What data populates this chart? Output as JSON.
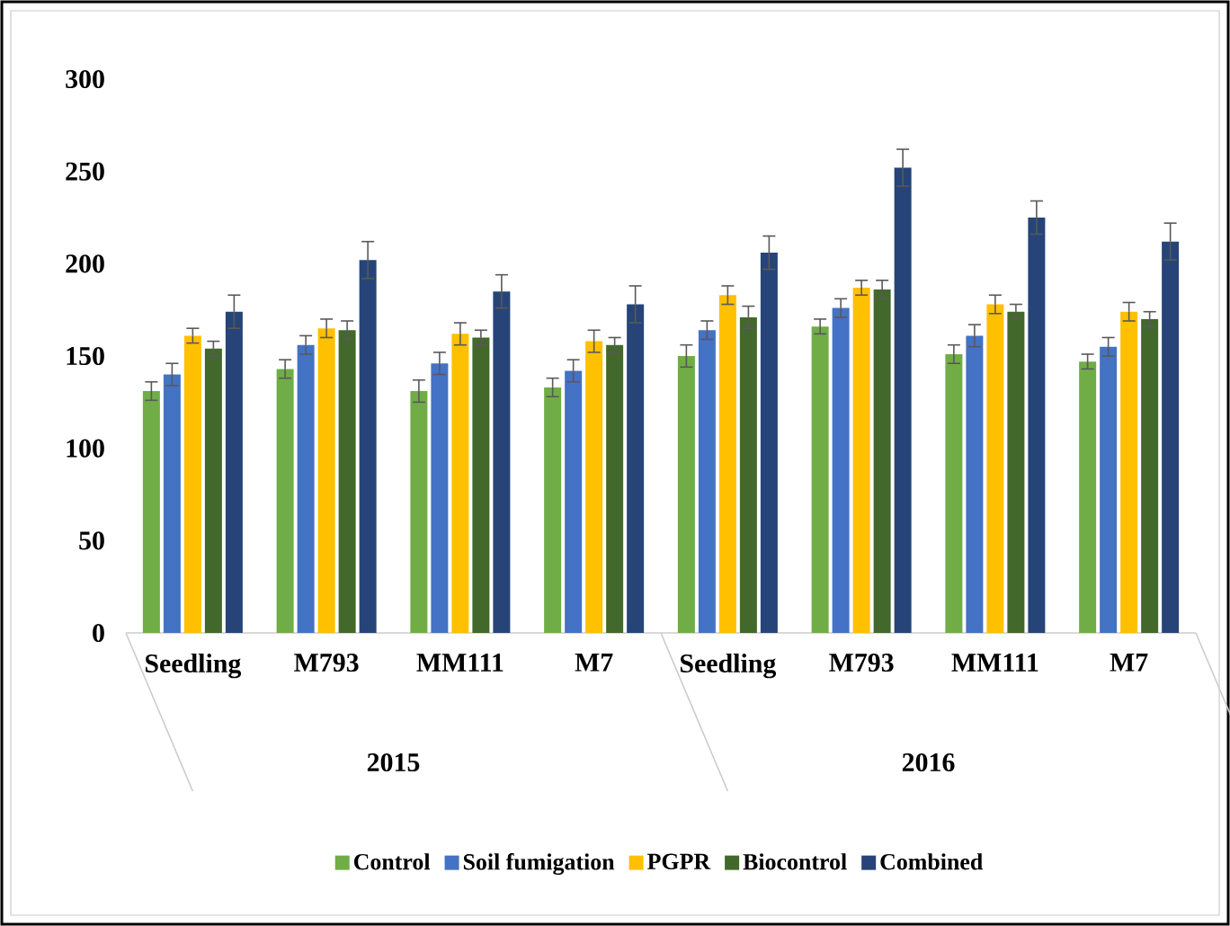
{
  "chart_data": {
    "type": "bar",
    "categories": [
      "Seedling",
      "M793",
      "MM111",
      "M7",
      "Seedling",
      "M793",
      "MM111",
      "M7"
    ],
    "series": [
      {
        "name": "Control",
        "color": "#70ad47",
        "values": [
          131,
          143,
          131,
          133,
          150,
          166,
          151,
          147
        ],
        "errors": [
          5,
          5,
          6,
          5,
          6,
          4,
          5,
          4
        ]
      },
      {
        "name": "Soil fumigation",
        "color": "#4472c4",
        "values": [
          140,
          156,
          146,
          142,
          164,
          176,
          161,
          155
        ],
        "errors": [
          6,
          5,
          6,
          6,
          5,
          5,
          6,
          5
        ]
      },
      {
        "name": "PGPR",
        "color": "#ffc000",
        "values": [
          161,
          165,
          162,
          158,
          183,
          187,
          178,
          174
        ],
        "errors": [
          4,
          5,
          6,
          6,
          5,
          4,
          5,
          5
        ]
      },
      {
        "name": "Biocontrol",
        "color": "#43682b",
        "values": [
          154,
          164,
          160,
          156,
          171,
          186,
          174,
          170
        ],
        "errors": [
          4,
          5,
          4,
          4,
          6,
          5,
          4,
          4
        ]
      },
      {
        "name": "Combined",
        "color": "#264478",
        "values": [
          174,
          202,
          185,
          178,
          206,
          252,
          225,
          212
        ],
        "errors": [
          9,
          10,
          9,
          10,
          9,
          10,
          9,
          10
        ]
      }
    ],
    "annotations": [
      "2015",
      "2016"
    ],
    "ylim": [
      0,
      300
    ],
    "yticks": [
      0,
      50,
      100,
      150,
      200,
      250,
      300
    ],
    "legend": "bottom"
  }
}
